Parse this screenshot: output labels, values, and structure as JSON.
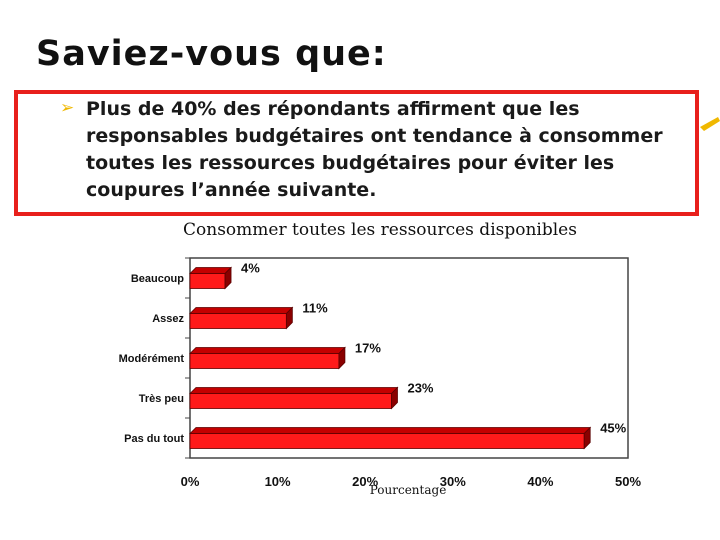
{
  "slide": {
    "title": "Saviez-vous que:",
    "bullet": "Plus de 40% des répondants affirment que les responsables budgétaires ont tendance à consommer toutes les ressources budgétaires pour éviter les coupures l’année suivante."
  },
  "colors": {
    "accent_border": "#e8201c",
    "bar_fill": "#ff1a1a",
    "bar_top": "#c40000",
    "bar_side": "#8a0000",
    "bullet_arrow": "#f0b800"
  },
  "chart_data": {
    "type": "bar",
    "orientation": "horizontal",
    "title": "Consommer toutes les ressources disponibles",
    "categories": [
      "Beaucoup",
      "Assez",
      "Modérément",
      "Très peu",
      "Pas du tout"
    ],
    "values": [
      4,
      11,
      17,
      23,
      45
    ],
    "value_labels": [
      "4%",
      "11%",
      "17%",
      "23%",
      "45%"
    ],
    "xlabel": "Pourcentage",
    "ylabel": "",
    "xlim": [
      0,
      50
    ],
    "xticks": [
      0,
      10,
      20,
      30,
      40,
      50
    ],
    "xtick_labels": [
      "0%",
      "10%",
      "20%",
      "30%",
      "40%",
      "50%"
    ],
    "grid": false,
    "legend": "none"
  }
}
